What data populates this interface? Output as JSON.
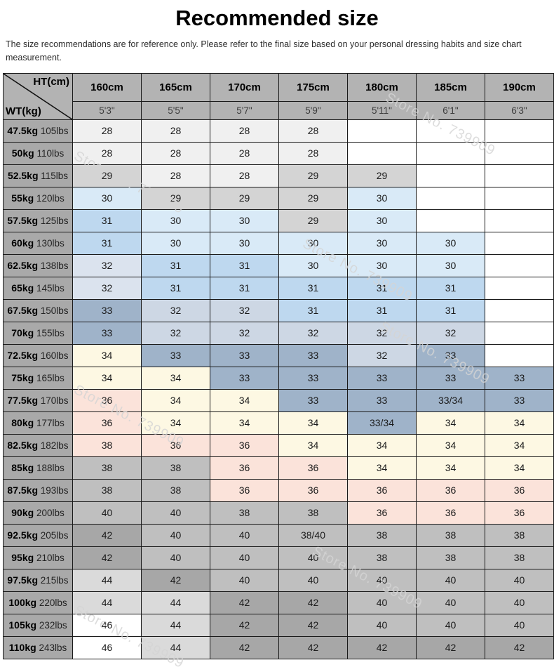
{
  "title": "Recommended size",
  "disclaimer": "The size recommendations are for reference only. Please refer to the final size based on your personal dressing habits and size chart measurement.",
  "watermark": {
    "text": "Store No. 739909"
  },
  "corner": {
    "top_label": "HT(cm)",
    "bottom_label": "WT(kg)"
  },
  "chart_data": {
    "type": "table",
    "title": "Recommended size",
    "col_headers_cm": [
      "160cm",
      "165cm",
      "170cm",
      "175cm",
      "180cm",
      "185cm",
      "190cm"
    ],
    "col_headers_ft": [
      "5'3\"",
      "5'5\"",
      "5'7\"",
      "5'9\"",
      "5'11\"",
      "6'1\"",
      "6'3\""
    ],
    "palette": {
      "white": "#ffffff",
      "offwhite": "#f0f0f0",
      "ltgray": "#d4d4d4",
      "ltblue": "#d9eaf7",
      "medblue": "#bed8ef",
      "xpale": "#dbe3ee",
      "paleblue": "#cdd7e4",
      "slate": "#9fb3c9",
      "cream": "#fdf8e3",
      "pink": "#fbe3da",
      "gray": "#bfbfbf",
      "dkgray": "#a7a7a7",
      "lgray2": "#dadada"
    },
    "rows": [
      {
        "kg": "47.5kg",
        "lbs": "105lbs",
        "values": [
          "28",
          "28",
          "28",
          "28",
          "",
          "",
          ""
        ],
        "colors": [
          "offwhite",
          "offwhite",
          "offwhite",
          "offwhite",
          "white",
          "white",
          "white"
        ]
      },
      {
        "kg": "50kg",
        "lbs": "110lbs",
        "values": [
          "28",
          "28",
          "28",
          "28",
          "",
          "",
          ""
        ],
        "colors": [
          "offwhite",
          "offwhite",
          "offwhite",
          "offwhite",
          "white",
          "white",
          "white"
        ]
      },
      {
        "kg": "52.5kg",
        "lbs": "115lbs",
        "values": [
          "29",
          "28",
          "28",
          "29",
          "29",
          "",
          ""
        ],
        "colors": [
          "ltgray",
          "offwhite",
          "offwhite",
          "ltgray",
          "ltgray",
          "white",
          "white"
        ]
      },
      {
        "kg": "55kg",
        "lbs": "120lbs",
        "values": [
          "30",
          "29",
          "29",
          "29",
          "30",
          "",
          ""
        ],
        "colors": [
          "ltblue",
          "ltgray",
          "ltgray",
          "ltgray",
          "ltblue",
          "white",
          "white"
        ]
      },
      {
        "kg": "57.5kg",
        "lbs": "125lbs",
        "values": [
          "31",
          "30",
          "30",
          "29",
          "30",
          "",
          ""
        ],
        "colors": [
          "medblue",
          "ltblue",
          "ltblue",
          "ltgray",
          "ltblue",
          "white",
          "white"
        ]
      },
      {
        "kg": "60kg",
        "lbs": "130lbs",
        "values": [
          "31",
          "30",
          "30",
          "30",
          "30",
          "30",
          ""
        ],
        "colors": [
          "medblue",
          "ltblue",
          "ltblue",
          "ltblue",
          "ltblue",
          "ltblue",
          "white"
        ]
      },
      {
        "kg": "62.5kg",
        "lbs": "138lbs",
        "values": [
          "32",
          "31",
          "31",
          "30",
          "30",
          "30",
          ""
        ],
        "colors": [
          "xpale",
          "medblue",
          "medblue",
          "ltblue",
          "ltblue",
          "ltblue",
          "white"
        ]
      },
      {
        "kg": "65kg",
        "lbs": "145lbs",
        "values": [
          "32",
          "31",
          "31",
          "31",
          "31",
          "31",
          ""
        ],
        "colors": [
          "xpale",
          "medblue",
          "medblue",
          "medblue",
          "medblue",
          "medblue",
          "white"
        ]
      },
      {
        "kg": "67.5kg",
        "lbs": "150lbs",
        "values": [
          "33",
          "32",
          "32",
          "31",
          "31",
          "31",
          ""
        ],
        "colors": [
          "slate",
          "paleblue",
          "paleblue",
          "medblue",
          "medblue",
          "medblue",
          "white"
        ]
      },
      {
        "kg": "70kg",
        "lbs": "155lbs",
        "values": [
          "33",
          "32",
          "32",
          "32",
          "32",
          "32",
          ""
        ],
        "colors": [
          "slate",
          "paleblue",
          "paleblue",
          "paleblue",
          "paleblue",
          "paleblue",
          "white"
        ]
      },
      {
        "kg": "72.5kg",
        "lbs": "160lbs",
        "values": [
          "34",
          "33",
          "33",
          "33",
          "32",
          "33",
          ""
        ],
        "colors": [
          "cream",
          "slate",
          "slate",
          "slate",
          "paleblue",
          "slate",
          "white"
        ]
      },
      {
        "kg": "75kg",
        "lbs": "165lbs",
        "values": [
          "34",
          "34",
          "33",
          "33",
          "33",
          "33",
          "33"
        ],
        "colors": [
          "cream",
          "cream",
          "slate",
          "slate",
          "slate",
          "slate",
          "slate"
        ]
      },
      {
        "kg": "77.5kg",
        "lbs": "170lbs",
        "values": [
          "36",
          "34",
          "34",
          "33",
          "33",
          "33/34",
          "33"
        ],
        "colors": [
          "pink",
          "cream",
          "cream",
          "slate",
          "slate",
          "slate",
          "slate"
        ]
      },
      {
        "kg": "80kg",
        "lbs": "177lbs",
        "values": [
          "36",
          "34",
          "34",
          "34",
          "33/34",
          "34",
          "34"
        ],
        "colors": [
          "pink",
          "cream",
          "cream",
          "cream",
          "slate",
          "cream",
          "cream"
        ]
      },
      {
        "kg": "82.5kg",
        "lbs": "182lbs",
        "values": [
          "38",
          "36",
          "36",
          "34",
          "34",
          "34",
          "34"
        ],
        "colors": [
          "pink",
          "pink",
          "pink",
          "cream",
          "cream",
          "cream",
          "cream"
        ]
      },
      {
        "kg": "85kg",
        "lbs": "188lbs",
        "values": [
          "38",
          "38",
          "36",
          "36",
          "34",
          "34",
          "34"
        ],
        "colors": [
          "gray",
          "gray",
          "pink",
          "pink",
          "cream",
          "cream",
          "cream"
        ]
      },
      {
        "kg": "87.5kg",
        "lbs": "193lbs",
        "values": [
          "38",
          "38",
          "36",
          "36",
          "36",
          "36",
          "36"
        ],
        "colors": [
          "gray",
          "gray",
          "pink",
          "pink",
          "pink",
          "pink",
          "pink"
        ]
      },
      {
        "kg": "90kg",
        "lbs": "200lbs",
        "values": [
          "40",
          "40",
          "38",
          "38",
          "36",
          "36",
          "36"
        ],
        "colors": [
          "gray",
          "gray",
          "gray",
          "gray",
          "pink",
          "pink",
          "pink"
        ]
      },
      {
        "kg": "92.5kg",
        "lbs": "205lbs",
        "values": [
          "42",
          "40",
          "40",
          "38/40",
          "38",
          "38",
          "38"
        ],
        "colors": [
          "dkgray",
          "gray",
          "gray",
          "gray",
          "gray",
          "gray",
          "gray"
        ]
      },
      {
        "kg": "95kg",
        "lbs": "210lbs",
        "values": [
          "42",
          "40",
          "40",
          "40",
          "38",
          "38",
          "38"
        ],
        "colors": [
          "dkgray",
          "gray",
          "gray",
          "gray",
          "gray",
          "gray",
          "gray"
        ]
      },
      {
        "kg": "97.5kg",
        "lbs": "215lbs",
        "values": [
          "44",
          "42",
          "40",
          "40",
          "40",
          "40",
          "40"
        ],
        "colors": [
          "lgray2",
          "dkgray",
          "gray",
          "gray",
          "gray",
          "gray",
          "gray"
        ]
      },
      {
        "kg": "100kg",
        "lbs": "220lbs",
        "values": [
          "44",
          "44",
          "42",
          "42",
          "40",
          "40",
          "40"
        ],
        "colors": [
          "lgray2",
          "lgray2",
          "dkgray",
          "dkgray",
          "gray",
          "gray",
          "gray"
        ]
      },
      {
        "kg": "105kg",
        "lbs": "232lbs",
        "values": [
          "46",
          "44",
          "42",
          "42",
          "40",
          "40",
          "40"
        ],
        "colors": [
          "white",
          "lgray2",
          "dkgray",
          "dkgray",
          "gray",
          "gray",
          "gray"
        ]
      },
      {
        "kg": "110kg",
        "lbs": "243lbs",
        "values": [
          "46",
          "44",
          "42",
          "42",
          "42",
          "42",
          "42"
        ],
        "colors": [
          "white",
          "lgray2",
          "dkgray",
          "dkgray",
          "dkgray",
          "dkgray",
          "dkgray"
        ]
      }
    ]
  }
}
